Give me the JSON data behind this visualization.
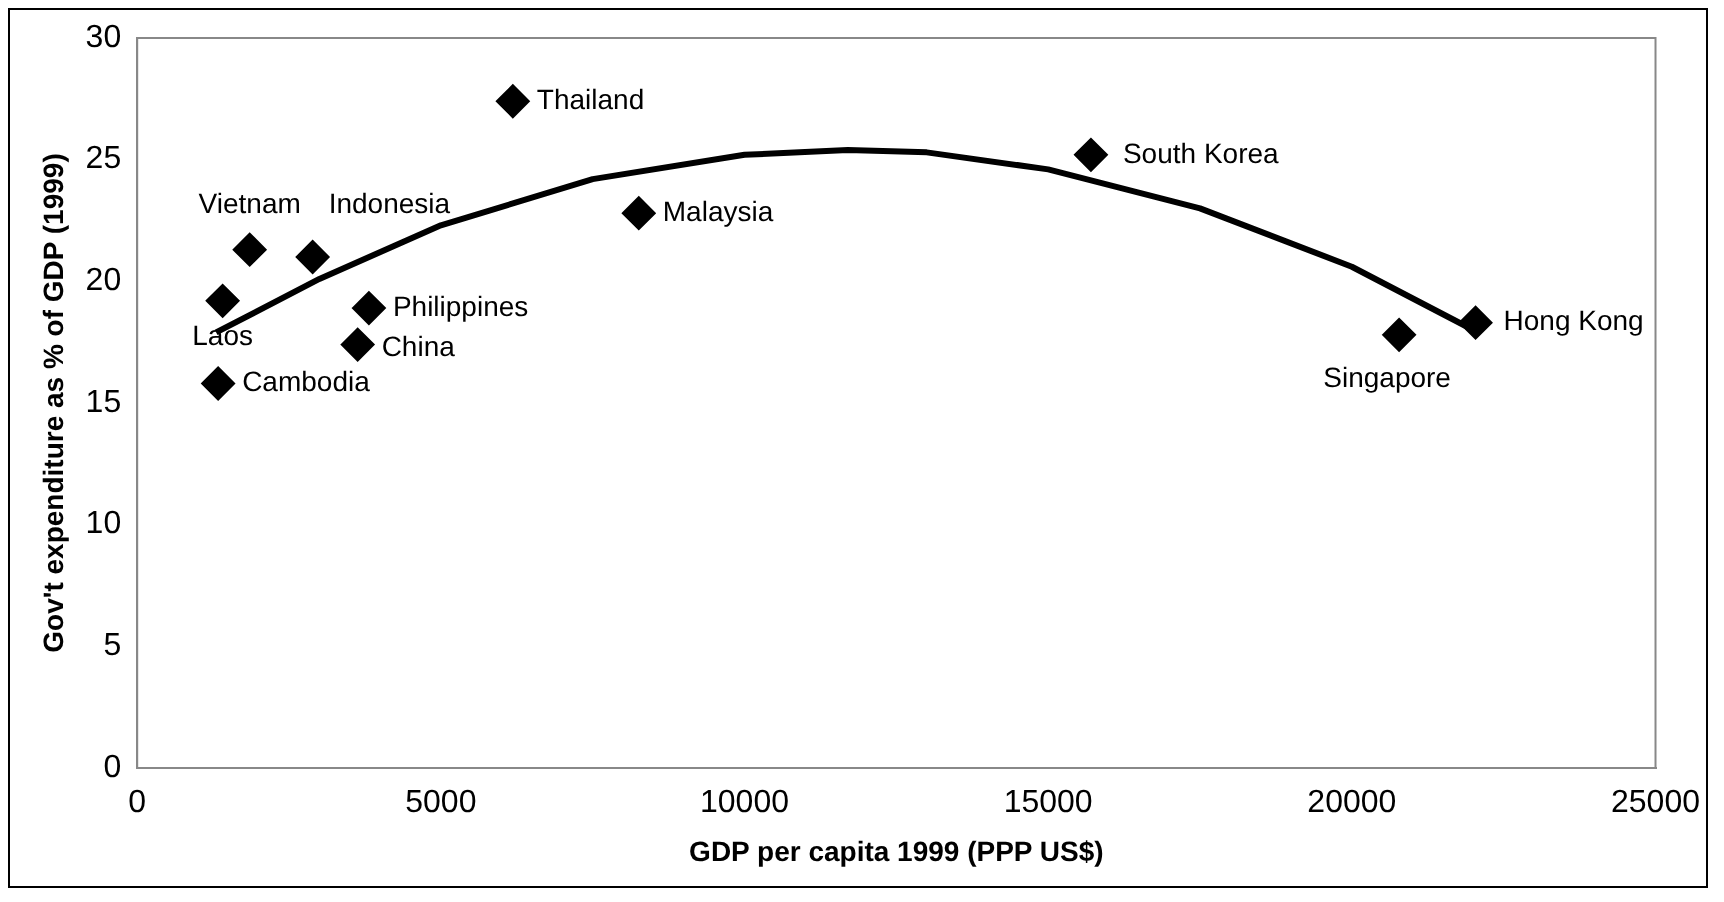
{
  "chart_data": {
    "type": "scatter",
    "xlabel": "GDP per capita 1999 (PPP US$)",
    "ylabel": "Gov't expenditure as % of GDP (1999)",
    "xlim": [
      0,
      25000
    ],
    "xticks": [
      0,
      5000,
      10000,
      15000,
      20000,
      25000
    ],
    "ylim": [
      0,
      30
    ],
    "yticks": [
      0,
      5,
      10,
      15,
      20,
      25,
      30
    ],
    "grid": false,
    "legend": false,
    "marker": "diamond",
    "series": [
      {
        "color": "#000000",
        "x": [
          1333,
          1407,
          1852,
          2889,
          3815,
          3630,
          6185,
          8259,
          15704,
          20778,
          22037
        ],
        "values": [
          15.8,
          19.2,
          21.3,
          21.0,
          18.9,
          17.4,
          27.4,
          22.8,
          25.2,
          17.8,
          18.3
        ]
      },
      {
        "type": "line",
        "color": "#000000",
        "marker": "none",
        "line_style": "solid",
        "x": [
          1300,
          3000,
          5000,
          7500,
          10000,
          11700,
          13000,
          15000,
          17500,
          20000,
          22000
        ],
        "values": [
          17.9,
          20.1,
          22.3,
          24.2,
          25.2,
          25.4,
          25.3,
          24.6,
          23.0,
          20.6,
          18.0
        ]
      }
    ],
    "annotations": [
      {
        "text": "Cambodia",
        "x": 1333,
        "y": 15.8
      },
      {
        "text": "Laos",
        "x": 1407,
        "y": 19.2
      },
      {
        "text": "Vietnam",
        "x": 1852,
        "y": 21.3
      },
      {
        "text": "Indonesia",
        "x": 2889,
        "y": 21.0
      },
      {
        "text": "Philippines",
        "x": 3815,
        "y": 18.9
      },
      {
        "text": "China",
        "x": 3630,
        "y": 17.4
      },
      {
        "text": "Thailand",
        "x": 6185,
        "y": 27.4
      },
      {
        "text": "Malaysia",
        "x": 8259,
        "y": 22.8
      },
      {
        "text": "South Korea",
        "x": 15704,
        "y": 25.2
      },
      {
        "text": "Singapore",
        "x": 20778,
        "y": 17.8
      },
      {
        "text": "Hong Kong",
        "x": 22037,
        "y": 18.3
      }
    ]
  }
}
